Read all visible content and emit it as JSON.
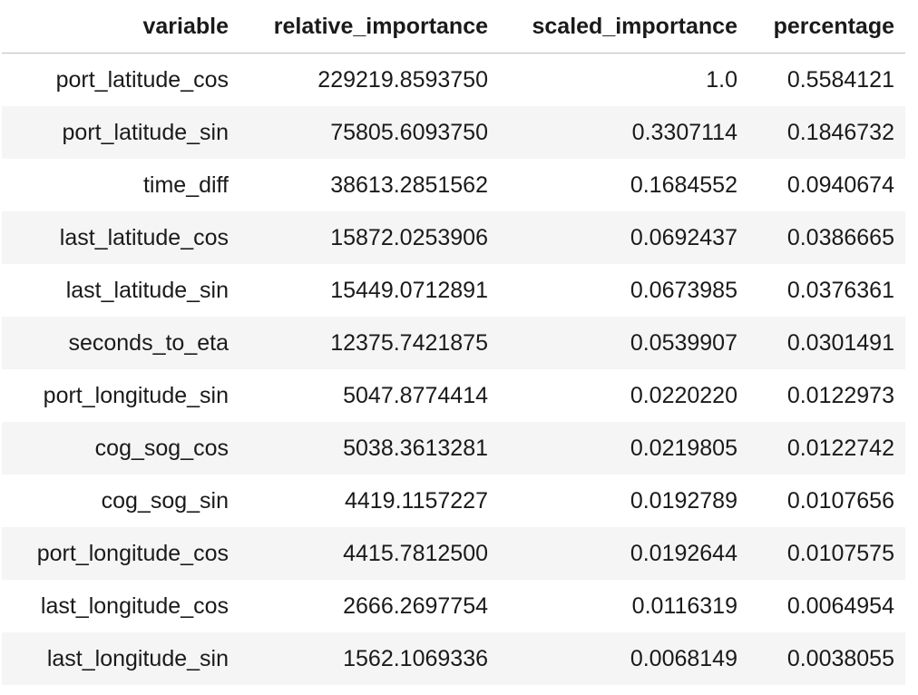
{
  "table": {
    "headers": [
      "variable",
      "relative_importance",
      "scaled_importance",
      "percentage"
    ],
    "rows": [
      [
        "port_latitude_cos",
        "229219.8593750",
        "1.0",
        "0.5584121"
      ],
      [
        "port_latitude_sin",
        "75805.6093750",
        "0.3307114",
        "0.1846732"
      ],
      [
        "time_diff",
        "38613.2851562",
        "0.1684552",
        "0.0940674"
      ],
      [
        "last_latitude_cos",
        "15872.0253906",
        "0.0692437",
        "0.0386665"
      ],
      [
        "last_latitude_sin",
        "15449.0712891",
        "0.0673985",
        "0.0376361"
      ],
      [
        "seconds_to_eta",
        "12375.7421875",
        "0.0539907",
        "0.0301491"
      ],
      [
        "port_longitude_sin",
        "5047.8774414",
        "0.0220220",
        "0.0122973"
      ],
      [
        "cog_sog_cos",
        "5038.3613281",
        "0.0219805",
        "0.0122742"
      ],
      [
        "cog_sog_sin",
        "4419.1157227",
        "0.0192789",
        "0.0107656"
      ],
      [
        "port_longitude_cos",
        "4415.7812500",
        "0.0192644",
        "0.0107575"
      ],
      [
        "last_longitude_cos",
        "2666.2697754",
        "0.0116319",
        "0.0064954"
      ],
      [
        "last_longitude_sin",
        "1562.1069336",
        "0.0068149",
        "0.0038055"
      ]
    ]
  },
  "colors": {
    "text": "#1a1a1a",
    "row_stripe": "#f5f5f5",
    "header_rule": "#bdbdbd"
  }
}
